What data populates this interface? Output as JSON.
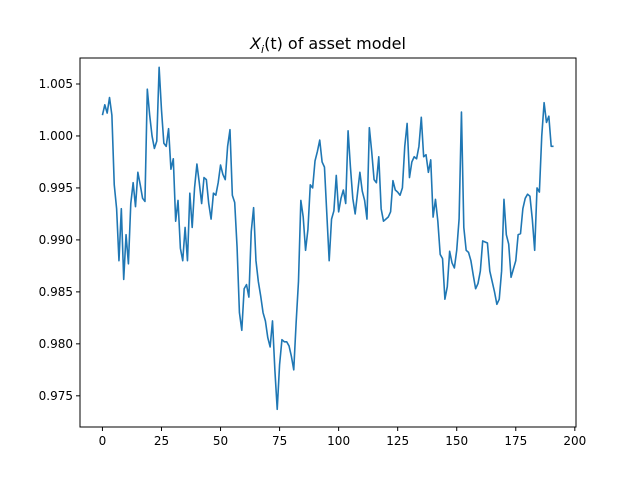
{
  "chart_data": {
    "type": "line",
    "title": "X_i(t) of asset model",
    "title_parts": {
      "var": "X",
      "sub": "i",
      "suffix": "(t) of asset model"
    },
    "xlabel": "",
    "ylabel": "",
    "xlim": [
      -9.5,
      200.5
    ],
    "ylim": [
      0.972,
      1.0075
    ],
    "x_ticks": [
      0,
      25,
      50,
      75,
      100,
      125,
      150,
      175,
      200
    ],
    "y_ticks": [
      0.975,
      0.98,
      0.985,
      0.99,
      0.995,
      1.0,
      1.005
    ],
    "y_tick_labels": [
      "0.975",
      "0.980",
      "0.985",
      "0.990",
      "0.995",
      "1.000",
      "1.005"
    ],
    "grid": false,
    "legend": "none",
    "color": "#1f77b4",
    "series": [
      {
        "x_start": 0,
        "x_step": 1,
        "values": [
          1.002,
          1.003,
          1.0022,
          1.0037,
          1.002,
          0.9953,
          0.993,
          0.988,
          0.993,
          0.9862,
          0.9905,
          0.9877,
          0.9935,
          0.9955,
          0.9932,
          0.9965,
          0.9953,
          0.994,
          0.9937,
          1.0045,
          1.002,
          1.0,
          0.9988,
          0.9995,
          1.0066,
          1.0025,
          0.9993,
          0.999,
          1.0007,
          0.9968,
          0.9978,
          0.9918,
          0.9938,
          0.9892,
          0.988,
          0.9912,
          0.988,
          0.9945,
          0.9912,
          0.995,
          0.9973,
          0.9955,
          0.9935,
          0.996,
          0.9958,
          0.9935,
          0.992,
          0.9945,
          0.9943,
          0.9955,
          0.9972,
          0.9963,
          0.9958,
          0.999,
          1.0006,
          0.9943,
          0.9936,
          0.9893,
          0.983,
          0.9813,
          0.9853,
          0.9857,
          0.9845,
          0.9908,
          0.9931,
          0.988,
          0.986,
          0.9846,
          0.983,
          0.9822,
          0.9806,
          0.9797,
          0.9822,
          0.9775,
          0.9737,
          0.978,
          0.9804,
          0.9802,
          0.9802,
          0.9798,
          0.9788,
          0.9775,
          0.982,
          0.986,
          0.9938,
          0.9922,
          0.989,
          0.991,
          0.9953,
          0.995,
          0.9976,
          0.9985,
          0.9996,
          0.9975,
          0.997,
          0.9925,
          0.988,
          0.992,
          0.9928,
          0.9962,
          0.9927,
          0.994,
          0.9948,
          0.9935,
          1.0005,
          0.997,
          0.994,
          0.9925,
          0.9945,
          0.9965,
          0.9947,
          0.9938,
          0.992,
          1.0008,
          0.9985,
          0.9958,
          0.9955,
          0.998,
          0.993,
          0.9918,
          0.992,
          0.9922,
          0.9927,
          0.9957,
          0.9948,
          0.9946,
          0.9943,
          0.995,
          0.999,
          1.0012,
          0.996,
          0.9975,
          0.998,
          0.9978,
          0.999,
          1.0018,
          0.998,
          0.9982,
          0.9965,
          0.9977,
          0.9922,
          0.9939,
          0.9918,
          0.9886,
          0.9882,
          0.9843,
          0.9855,
          0.9889,
          0.9878,
          0.9873,
          0.989,
          0.992,
          1.0023,
          0.9912,
          0.989,
          0.9888,
          0.988,
          0.9866,
          0.9853,
          0.9858,
          0.987,
          0.9899,
          0.9898,
          0.9897,
          0.987,
          0.986,
          0.985,
          0.9838,
          0.9843,
          0.987,
          0.9939,
          0.9905,
          0.9896,
          0.9864,
          0.9872,
          0.988,
          0.9905,
          0.9906,
          0.993,
          0.994,
          0.9944,
          0.9942,
          0.992,
          0.989,
          0.995,
          0.9946,
          1.0,
          1.0032,
          1.0013,
          1.0019,
          0.999,
          0.999
        ]
      }
    ]
  }
}
